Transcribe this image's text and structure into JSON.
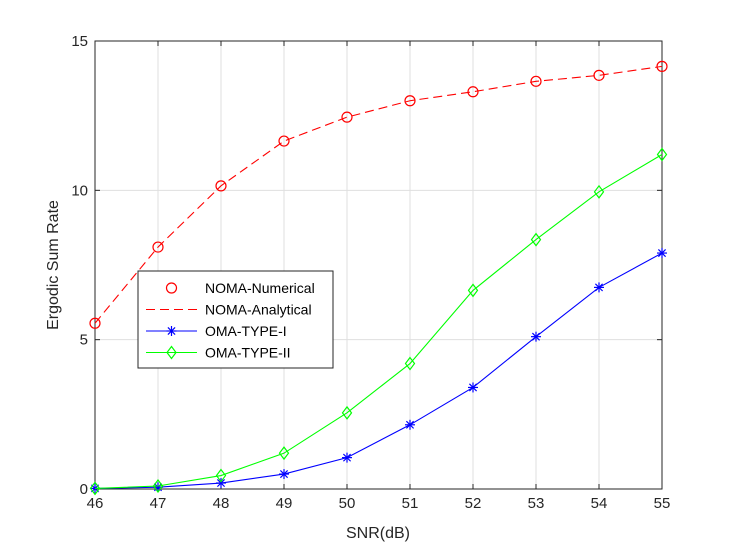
{
  "chart_data": {
    "type": "line",
    "title": "",
    "xlabel": "SNR(dB)",
    "ylabel": "Ergodic Sum Rate",
    "x": [
      46,
      47,
      48,
      49,
      50,
      51,
      52,
      53,
      54,
      55
    ],
    "xlim": [
      46,
      55
    ],
    "ylim": [
      0,
      15
    ],
    "xticks": [
      "46",
      "47",
      "48",
      "49",
      "50",
      "51",
      "52",
      "53",
      "54",
      "55"
    ],
    "yticks": [
      "0",
      "5",
      "10",
      "15"
    ],
    "grid": true,
    "legend_position": "center-left",
    "series": [
      {
        "name": "NOMA-Numerical",
        "values": [
          5.55,
          8.1,
          10.15,
          11.65,
          12.45,
          13.0,
          13.3,
          13.65,
          13.85,
          14.15
        ],
        "color": "#ff0000",
        "line": "none",
        "marker": "circle"
      },
      {
        "name": "NOMA-Analytical",
        "values": [
          5.55,
          8.1,
          10.15,
          11.65,
          12.45,
          13.0,
          13.3,
          13.65,
          13.85,
          14.15
        ],
        "color": "#ff0000",
        "line": "dashed",
        "marker": "none"
      },
      {
        "name": "OMA-TYPE-I",
        "values": [
          0.02,
          0.06,
          0.2,
          0.5,
          1.05,
          2.15,
          3.4,
          5.1,
          6.75,
          7.9
        ],
        "color": "#0000ff",
        "line": "solid",
        "marker": "asterisk"
      },
      {
        "name": "OMA-TYPE-II",
        "values": [
          0.02,
          0.1,
          0.45,
          1.2,
          2.55,
          4.2,
          6.65,
          8.35,
          9.95,
          11.2
        ],
        "color": "#00ff00",
        "line": "solid",
        "marker": "diamond"
      }
    ]
  }
}
